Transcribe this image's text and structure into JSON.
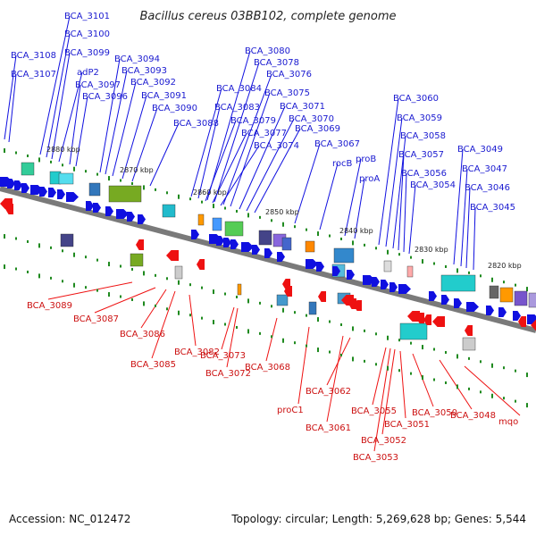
{
  "title": "Bacillus cereus 03BB102, complete genome",
  "footer": {
    "accession": "Accession: NC_012472",
    "topology": "Topology: circular; Length: 5,269,628 bp; Genes: 5,544"
  },
  "colors": {
    "forward_gene": "#1010e0",
    "reverse_gene": "#ee1111",
    "backbone": "#7a7a7a",
    "tick": "#1f8a1f",
    "label_forward": "#1a1ad0",
    "label_reverse": "#cc1111"
  },
  "ticks": [
    "2880 kbp",
    "2870 kbp",
    "2860 kbp",
    "2850 kbp",
    "2840 kbp",
    "2830 kbp",
    "2820 kbp"
  ],
  "forward_genes": [
    "BCA_3101",
    "BCA_3100",
    "BCA_3108",
    "BCA_3099",
    "adP2",
    "BCA_3107",
    "BCA_3097",
    "BCA_3096",
    "BCA_3094",
    "BCA_3093",
    "BCA_3092",
    "BCA_3091",
    "BCA_3090",
    "BCA_3088",
    "BCA_3080",
    "BCA_3078",
    "BCA_3076",
    "BCA_3084",
    "BCA_3075",
    "BCA_3083",
    "BCA_3071",
    "BCA_3079",
    "BCA_3070",
    "BCA_3077",
    "BCA_3069",
    "BCA_3074",
    "BCA_3067",
    "rocB",
    "proB",
    "proA",
    "BCA_3060",
    "BCA_3059",
    "BCA_3058",
    "BCA_3057",
    "BCA_3056",
    "BCA_3054",
    "BCA_3049",
    "BCA_3047",
    "BCA_3046",
    "BCA_3045"
  ],
  "reverse_genes": [
    "BCA_3089",
    "BCA_3087",
    "BCA_3086",
    "BCA_3085",
    "BCA_3082",
    "BCA_3073",
    "BCA_3072",
    "BCA_3068",
    "BCA_3062",
    "proC1",
    "BCA_3061",
    "BCA_3055",
    "BCA_3051",
    "BCA_3052",
    "BCA_3053",
    "BCA_3050",
    "BCA_3048",
    "mqo"
  ]
}
